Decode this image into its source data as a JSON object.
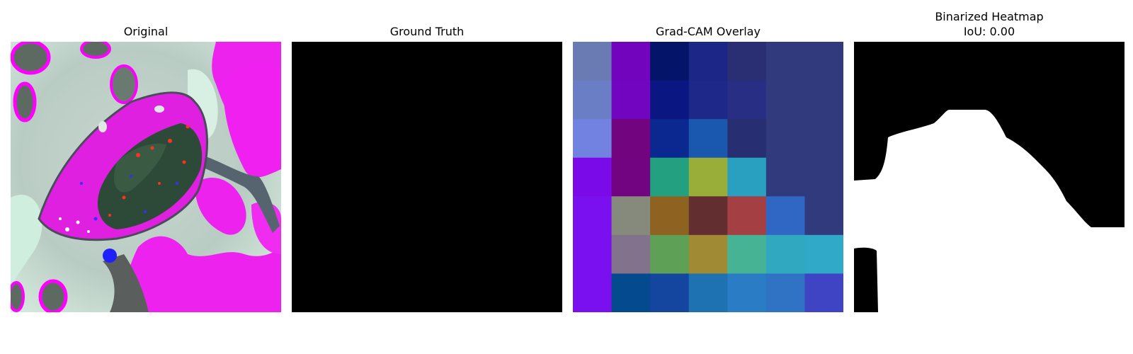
{
  "panels": {
    "original": {
      "title": "Original"
    },
    "ground_truth": {
      "title": "Ground Truth"
    },
    "gradcam": {
      "title": "Grad-CAM Overlay",
      "grid_colors": [
        [
          "#6a7ab2",
          "#7204bd",
          "#041468",
          "#1c2686",
          "#2a2e72",
          "#313a7c",
          "#313a7c"
        ],
        [
          "#6a7ec6",
          "#7205bf",
          "#0a1782",
          "#1d2888",
          "#282e84",
          "#313a7c",
          "#313a7c"
        ],
        [
          "#7282e0",
          "#720480",
          "#0a2890",
          "#1a58b0",
          "#282e72",
          "#313a7c",
          "#313a7c"
        ],
        [
          "#7a0ae8",
          "#720482",
          "#22a080",
          "#98ae38",
          "#2aa0c0",
          "#313a7c",
          "#313a7c"
        ],
        [
          "#7a10f0",
          "#868a7c",
          "#8e6220",
          "#622e30",
          "#a44044",
          "#3066c4",
          "#313a7c"
        ],
        [
          "#7a10f0",
          "#82728c",
          "#5ea056",
          "#a08a34",
          "#46b494",
          "#30a8c0",
          "#30a8c8"
        ],
        [
          "#7a10f0",
          "#044a8e",
          "#1446a0",
          "#1e72b2",
          "#2a7cc4",
          "#3072c4",
          "#3e44c4"
        ]
      ]
    },
    "binarized": {
      "title": "Binarized Heatmap\nIoU: 0.00"
    }
  },
  "colors": {
    "mask_fill": "#ffffff",
    "background_black": "#000000"
  }
}
